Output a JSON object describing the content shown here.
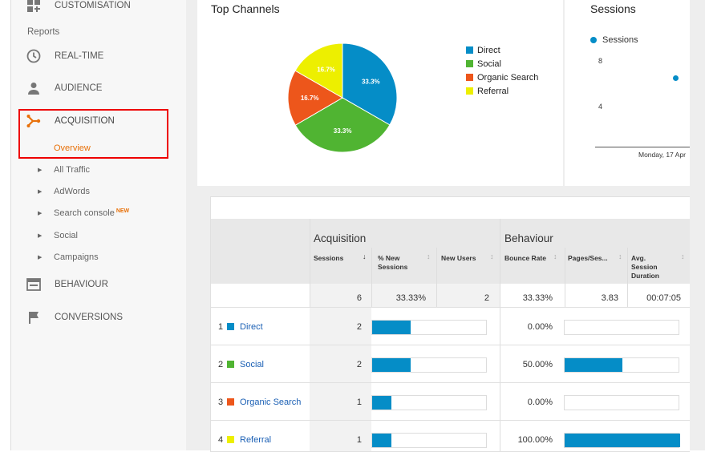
{
  "sidebar": {
    "customisation": "CUSTOMISATION",
    "reports": "Reports",
    "realtime": "REAL-TIME",
    "audience": "AUDIENCE",
    "acquisition": "ACQUISITION",
    "overview": "Overview",
    "sub_items": [
      "All Traffic",
      "AdWords",
      "Search console",
      "Social",
      "Campaigns"
    ],
    "new_badge": "NEW",
    "behaviour": "BEHAVIOUR",
    "conversions": "CONVERSIONS"
  },
  "top_channels": {
    "title": "Top Channels",
    "legend": [
      "Direct",
      "Social",
      "Organic Search",
      "Referral"
    ]
  },
  "chart_data": {
    "type": "pie",
    "title": "Top Channels",
    "categories": [
      "Direct",
      "Social",
      "Organic Search",
      "Referral"
    ],
    "values": [
      33.3,
      33.3,
      16.7,
      16.7
    ],
    "labels": [
      "33.3%",
      "33.3%",
      "16.7%",
      "16.7%"
    ],
    "colors": [
      "#058dc7",
      "#50b432",
      "#ed561b",
      "#edef00"
    ],
    "legend_position": "right"
  },
  "sessions_card": {
    "title": "Sessions",
    "legend": "Sessions",
    "y_ticks": [
      "8",
      "4"
    ],
    "x_label": "Monday, 17 Apr"
  },
  "table": {
    "group_acquisition": "Acquisition",
    "group_behaviour": "Behaviour",
    "headers": {
      "sessions": "Sessions",
      "new_sessions": "% New Sessions",
      "new_users": "New Users",
      "bounce_rate": "Bounce Rate",
      "pages_session": "Pages/Ses...",
      "avg_duration": "Avg. Session Duration"
    },
    "totals": {
      "sessions": "6",
      "new_sessions": "33.33%",
      "new_users": "2",
      "bounce_rate": "33.33%",
      "pages_session": "3.83",
      "avg_duration": "00:07:05"
    },
    "rows": [
      {
        "num": "1",
        "name": "Direct",
        "sessions": "2",
        "sessions_share": 0.333,
        "bounce": "0.00%",
        "bounce_frac": 0.0
      },
      {
        "num": "2",
        "name": "Social",
        "sessions": "2",
        "sessions_share": 0.333,
        "bounce": "50.00%",
        "bounce_frac": 0.5
      },
      {
        "num": "3",
        "name": "Organic Search",
        "sessions": "1",
        "sessions_share": 0.167,
        "bounce": "0.00%",
        "bounce_frac": 0.0
      },
      {
        "num": "4",
        "name": "Referral",
        "sessions": "1",
        "sessions_share": 0.167,
        "bounce": "100.00%",
        "bounce_frac": 1.0
      }
    ]
  }
}
